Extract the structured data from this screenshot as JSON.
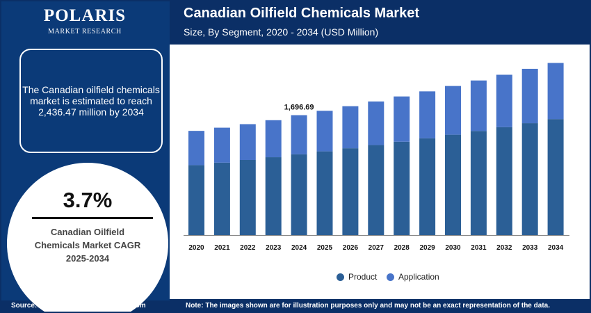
{
  "logo": {
    "name": "POLARIS",
    "sub": "MARKET RESEARCH"
  },
  "title": "Canadian Oilfield Chemicals Market",
  "subtitle": "Size, By Segment, 2020 - 2034 (USD Million)",
  "callout": "The Canadian oilfield chemicals market is estimated to reach 2,436.47 million by 2034",
  "cagr": {
    "value": "3.7%",
    "label": "Canadian Oilfield\nChemicals Market CAGR\n2025-2034"
  },
  "footer": {
    "source": "Source:www.polarismarketresearch.com",
    "note": "Note: The images shown are for illustration purposes only and may not be an exact representation of the data."
  },
  "colors": {
    "product": "#2b5f96",
    "application": "#4874c9",
    "navy": "#0b3a78"
  },
  "chart_data": {
    "type": "bar",
    "stacked": true,
    "categories": [
      "2020",
      "2021",
      "2022",
      "2023",
      "2024",
      "2025",
      "2026",
      "2027",
      "2028",
      "2029",
      "2030",
      "2031",
      "2032",
      "2033",
      "2034"
    ],
    "series": [
      {
        "name": "Product",
        "values": [
          990,
          1025,
          1063,
          1102,
          1143,
          1185,
          1229,
          1274,
          1321,
          1370,
          1421,
          1473,
          1527,
          1584,
          1642
        ]
      },
      {
        "name": "Application",
        "values": [
          485,
          495,
          507,
          524,
          554,
          574,
          595,
          617,
          641,
          664,
          689,
          715,
          742,
          769,
          794
        ]
      }
    ],
    "annotations": [
      {
        "category": "2024",
        "text": "1,696.69"
      }
    ],
    "legend": "bottom-center",
    "grid": false
  }
}
